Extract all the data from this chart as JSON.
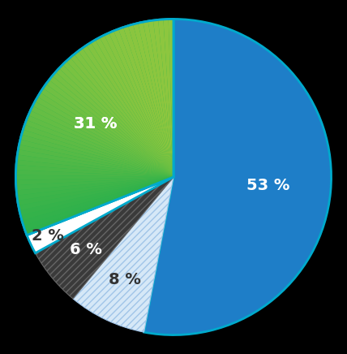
{
  "slices": [
    53,
    8,
    6,
    2,
    31
  ],
  "labels": [
    "53 %",
    "8 %",
    "6 %",
    "2 %",
    "31 %"
  ],
  "colors": [
    "#1e7ec8",
    "#d6e8f7",
    "#3a3a3a",
    "#ffffff",
    "#2db84b"
  ],
  "hatch": [
    null,
    "////",
    "////",
    null,
    null
  ],
  "hatch_edgecolors": [
    "white",
    "#a0c4e8",
    "#666666",
    "white",
    "white"
  ],
  "label_colors": [
    "white",
    "#333333",
    "white",
    "#333333",
    "white"
  ],
  "label_radii": [
    0.6,
    0.72,
    0.72,
    0.88,
    0.6
  ],
  "startangle": 90,
  "counterclock": false,
  "figsize": [
    4.28,
    4.36
  ],
  "dpi": 100,
  "label_fontsize": 14,
  "label_fontweight": "bold",
  "background_color": "#000000",
  "edge_color": "#00aacc",
  "edge_linewidth": 2.0,
  "green_top_color": "#8dc63f",
  "green_bottom_color": "#00a651"
}
